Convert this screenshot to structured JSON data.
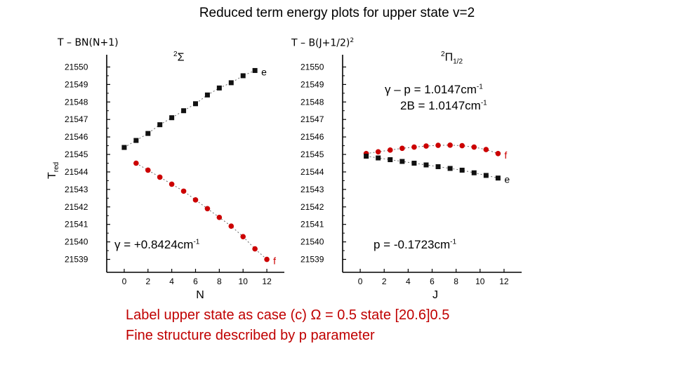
{
  "title": "Reduced term energy plots for upper state v=2",
  "left_panel": {
    "formula_prefix": "T – BN(N+1)",
    "term_symbol": {
      "superscript": "2",
      "letter": "Σ"
    },
    "annotation": {
      "prefix": "γ = +0.8424cm",
      "exponent": "-1"
    }
  },
  "right_panel": {
    "formula_prefix": "T – B(J+1/2)",
    "formula_exponent": "2",
    "term_symbol": {
      "superscript": "2",
      "letter": "Π",
      "subscript": "1/2"
    },
    "annotation_line1": {
      "prefix": "γ – p = 1.0147cm",
      "exponent": "-1"
    },
    "annotation_line2": {
      "prefix": "2B = 1.0147cm",
      "exponent": "-1"
    },
    "annotation_bottom": {
      "prefix": "p = -0.1723cm",
      "exponent": "-1"
    }
  },
  "notes": [
    "Label upper state as case (c) Ω = 0.5 state [20.6]0.5",
    "Fine structure described by p parameter"
  ],
  "colors": {
    "e_series": "#111111",
    "f_series": "#cc0000",
    "note_text": "#c00000"
  },
  "chart_data": [
    {
      "type": "scatter",
      "xlabel": "N",
      "ylabel": "T",
      "ylabel_subscript": "red",
      "xlim": [
        -1,
        13
      ],
      "ylim": [
        21538.5,
        21550.5
      ],
      "xticks": [
        0,
        2,
        4,
        6,
        8,
        10,
        12
      ],
      "yticks": [
        21539,
        21540,
        21541,
        21542,
        21543,
        21544,
        21545,
        21546,
        21547,
        21548,
        21549,
        21550
      ],
      "series": [
        {
          "name": "e",
          "marker": "square",
          "color": "#111111",
          "line": "dotted",
          "x": [
            0,
            1,
            2,
            3,
            4,
            5,
            6,
            7,
            8,
            9,
            10,
            11
          ],
          "y": [
            21545.4,
            21545.8,
            21546.2,
            21546.7,
            21547.1,
            21547.5,
            21547.9,
            21548.4,
            21548.8,
            21549.1,
            21549.5,
            21549.8
          ]
        },
        {
          "name": "f",
          "marker": "circle",
          "color": "#cc0000",
          "line": "dotted",
          "x": [
            1,
            2,
            3,
            4,
            5,
            6,
            7,
            8,
            9,
            10,
            11,
            12
          ],
          "y": [
            21544.5,
            21544.1,
            21543.7,
            21543.3,
            21542.9,
            21542.4,
            21541.9,
            21541.4,
            21540.9,
            21540.3,
            21539.6,
            21539.0
          ]
        }
      ]
    },
    {
      "type": "scatter",
      "xlabel": "J",
      "ylabel": "",
      "xlim": [
        -1,
        13
      ],
      "ylim": [
        21538.5,
        21550.5
      ],
      "xticks": [
        0,
        2,
        4,
        6,
        8,
        10,
        12
      ],
      "yticks": [
        21539,
        21540,
        21541,
        21542,
        21543,
        21544,
        21545,
        21546,
        21547,
        21548,
        21549,
        21550
      ],
      "series": [
        {
          "name": "f",
          "marker": "circle",
          "color": "#cc0000",
          "line": "dotted",
          "x": [
            0.5,
            1.5,
            2.5,
            3.5,
            4.5,
            5.5,
            6.5,
            7.5,
            8.5,
            9.5,
            10.5,
            11.5
          ],
          "y": [
            21545.05,
            21545.15,
            21545.25,
            21545.35,
            21545.42,
            21545.48,
            21545.52,
            21545.53,
            21545.5,
            21545.42,
            21545.28,
            21545.05
          ]
        },
        {
          "name": "e",
          "marker": "square",
          "color": "#111111",
          "line": "dotted",
          "x": [
            0.5,
            1.5,
            2.5,
            3.5,
            4.5,
            5.5,
            6.5,
            7.5,
            8.5,
            9.5,
            10.5,
            11.5
          ],
          "y": [
            21544.9,
            21544.8,
            21544.7,
            21544.6,
            21544.5,
            21544.4,
            21544.3,
            21544.2,
            21544.1,
            21543.95,
            21543.8,
            21543.65
          ]
        }
      ]
    }
  ]
}
